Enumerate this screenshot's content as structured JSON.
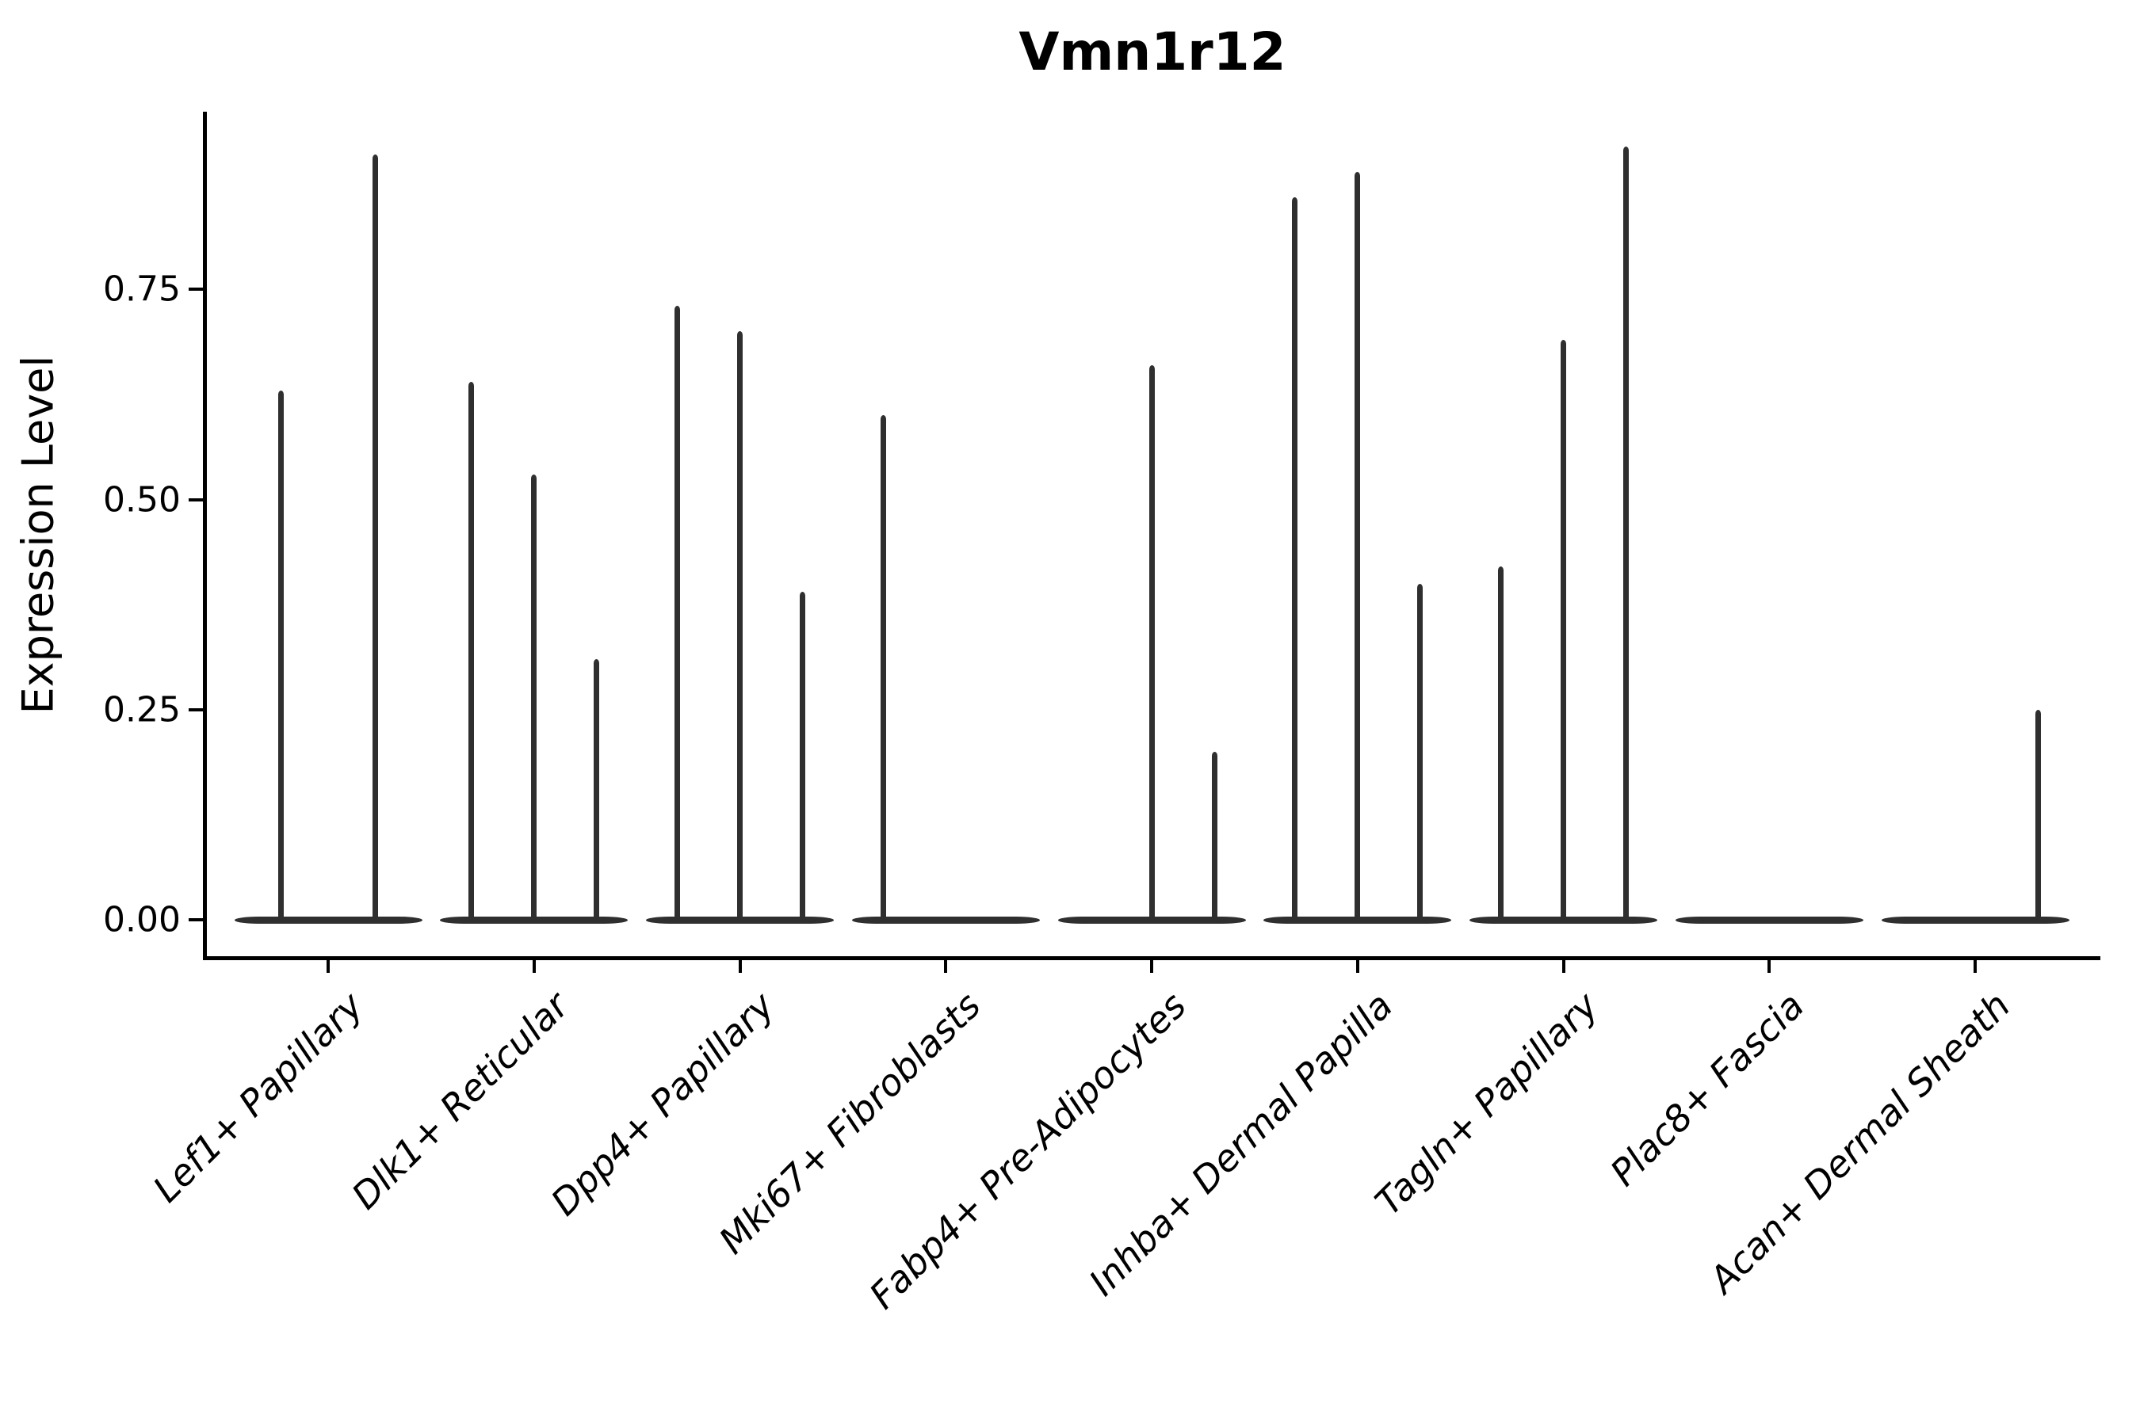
{
  "title": "Vmn1r12",
  "axes": {
    "y_label": "Expression Level",
    "y_tick_labels": [
      "0.00",
      "0.25",
      "0.50",
      "0.75"
    ],
    "y_tick_values": [
      0,
      0.25,
      0.5,
      0.75
    ]
  },
  "chart_data": {
    "type": "violin",
    "title": "Vmn1r12",
    "xlabel": "",
    "ylabel": "Expression Level",
    "ylim": [
      -0.045,
      0.96
    ],
    "yticks": [
      0,
      0.25,
      0.5,
      0.75
    ],
    "ytick_labels": [
      "0.00",
      "0.25",
      "0.50",
      "0.75"
    ],
    "grid": false,
    "legend": "none",
    "description": "Violin plot of Vmn1r12 expression; each category holds dodged violins that are flat at 0 with a thin spike to the maximum expression value. A value of 0 means a flat violin with no spike.",
    "categories": [
      "Lef1+ Papillary",
      "Dlk1+ Reticular",
      "Dpp4+ Papillary",
      "Mki67+ Fibroblasts",
      "Fabp4+ Pre-Adipocytes",
      "Inhba+ Dermal Papilla",
      "Tagln+ Papillary",
      "Plac8+ Fascia",
      "Acan+ Dermal Sheath"
    ],
    "violins": [
      {
        "category": "Lef1+ Papillary",
        "maxima": [
          0.63,
          0.91
        ]
      },
      {
        "category": "Dlk1+ Reticular",
        "maxima": [
          0.64,
          0.53,
          0.31
        ]
      },
      {
        "category": "Dpp4+ Papillary",
        "maxima": [
          0.73,
          0.7,
          0.39
        ]
      },
      {
        "category": "Mki67+ Fibroblasts",
        "maxima": [
          0.6,
          0,
          0
        ]
      },
      {
        "category": "Fabp4+ Pre-Adipocytes",
        "maxima": [
          0,
          0.66,
          0.2
        ]
      },
      {
        "category": "Inhba+ Dermal Papilla",
        "maxima": [
          0.86,
          0.89,
          0.4
        ]
      },
      {
        "category": "Tagln+ Papillary",
        "maxima": [
          0.42,
          0.69,
          0.92
        ]
      },
      {
        "category": "Plac8+ Fascia",
        "maxima": [
          0,
          0,
          0
        ]
      },
      {
        "category": "Acan+ Dermal Sheath",
        "maxima": [
          0,
          0,
          0.25
        ]
      }
    ],
    "colors": {
      "violin": "#2f2f2f",
      "axis": "#000000",
      "text": "#000000",
      "background": "#ffffff"
    }
  }
}
